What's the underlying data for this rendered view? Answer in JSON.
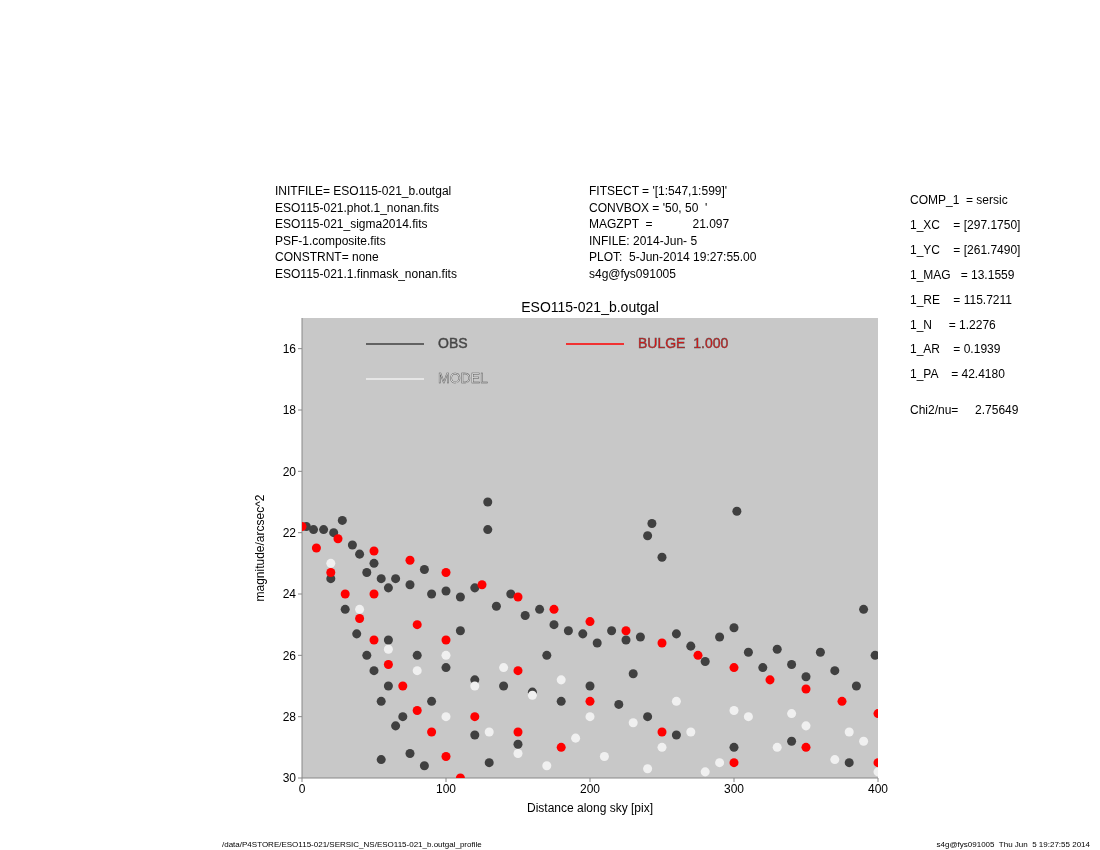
{
  "chart_data": {
    "type": "scatter",
    "title": "ESO115-021_b.outgal",
    "xlabel": "Distance along sky [pix]",
    "ylabel": "magnitude/arcsec^2",
    "xlim": [
      0,
      400
    ],
    "xticks": [
      0,
      100,
      200,
      300,
      400
    ],
    "ylim": [
      30,
      15
    ],
    "yticks": [
      16,
      18,
      20,
      22,
      24,
      26,
      28,
      30
    ],
    "grid": false,
    "legend": "top left",
    "marker": "circle",
    "annotations": [
      "INITFILE= ESO115-021_b.outgal",
      "ESO115-021.phot.1_nonan.fits",
      "ESO115-021_sigma2014.fits",
      "PSF-1.composite.fits",
      "CONSTRNT= none",
      "ESO115-021.1.finmask_nonan.fits",
      "FITSECT = '[1:547,1:599]'",
      "CONVBOX = '50, 50  '",
      "MAGZPT  =            21.097",
      "INFILE: 2014-Jun- 5",
      "PLOT:  5-Jun-2014 19:27:55.00",
      "s4g@fys091005",
      "COMP_1  = sersic",
      "1_XC    = [297.1750]",
      "1_YC    = [261.7490]",
      "1_MAG   = 13.1559",
      "1_RE    = 115.7211",
      "1_N     = 1.2276",
      "1_AR    = 0.1939",
      "1_PA    = 42.4180",
      "Chi2/nu=     2.75649",
      "/data/P4STORE/ESO115-021/SERSIC_NS/ESO115-021_b.outgal_profile",
      "s4g@fys091005  Thu Jun  5 19:27:55 2014"
    ],
    "series": [
      {
        "name": "OBS",
        "color": "#404040",
        "x": [
          3,
          8,
          15,
          22,
          28,
          35,
          40,
          45,
          50,
          55,
          60,
          65,
          75,
          85,
          90,
          100,
          110,
          120,
          129,
          129,
          135,
          145,
          155,
          165,
          175,
          185,
          195,
          205,
          215,
          225,
          235,
          243,
          240,
          250,
          260,
          270,
          280,
          290,
          300,
          302,
          310,
          320,
          330,
          340,
          350,
          360,
          370,
          385,
          390,
          398,
          20,
          30,
          38,
          45,
          50,
          55,
          60,
          65,
          70,
          75,
          85,
          55,
          60,
          80,
          100,
          120,
          140,
          160,
          180,
          200,
          220,
          240,
          150,
          130,
          260,
          300,
          340,
          380,
          110,
          170,
          230,
          90,
          120
        ],
        "values": [
          21.8,
          21.9,
          21.9,
          22.0,
          21.6,
          22.4,
          22.7,
          23.3,
          23.0,
          23.5,
          23.8,
          23.5,
          23.7,
          23.2,
          24.0,
          23.9,
          24.1,
          23.8,
          21.0,
          21.9,
          24.4,
          24.0,
          24.7,
          24.5,
          25.0,
          25.2,
          25.3,
          25.6,
          25.2,
          25.5,
          25.4,
          21.7,
          22.1,
          22.8,
          25.3,
          25.7,
          26.2,
          25.4,
          25.1,
          21.3,
          25.9,
          26.4,
          25.8,
          26.3,
          26.7,
          25.9,
          26.5,
          27.0,
          24.5,
          26.0,
          23.5,
          24.5,
          25.3,
          26.0,
          26.5,
          27.5,
          27.0,
          28.3,
          28.0,
          29.2,
          29.6,
          29.4,
          25.5,
          26.0,
          26.4,
          26.8,
          27.0,
          27.2,
          27.5,
          27.0,
          27.6,
          28.0,
          28.9,
          29.5,
          28.6,
          29.0,
          28.8,
          29.5,
          25.2,
          26.0,
          26.6,
          27.5,
          28.6
        ]
      },
      {
        "name": "MODEL",
        "color": "#f0f0f0",
        "x": [
          100,
          130,
          150,
          170,
          190,
          210,
          230,
          250,
          270,
          290,
          310,
          330,
          350,
          370,
          390,
          400,
          260,
          300,
          340,
          380,
          80,
          120,
          160,
          200,
          240,
          280,
          20,
          40,
          60,
          100,
          140,
          180
        ],
        "values": [
          28.0,
          28.5,
          29.2,
          29.6,
          28.7,
          29.3,
          28.2,
          29.0,
          28.5,
          29.5,
          28.0,
          29.0,
          28.3,
          29.4,
          28.8,
          29.8,
          27.5,
          27.8,
          27.9,
          28.5,
          26.5,
          27.0,
          27.3,
          28.0,
          29.7,
          29.8,
          23.0,
          24.5,
          25.8,
          26.0,
          26.4,
          26.8
        ]
      },
      {
        "name": "BULGE  1.000",
        "color": "#ff0000",
        "x": [
          0,
          25,
          50,
          75,
          100,
          125,
          150,
          175,
          200,
          225,
          250,
          275,
          300,
          325,
          350,
          375,
          400,
          10,
          20,
          30,
          40,
          50,
          60,
          70,
          80,
          90,
          100,
          110,
          50,
          100,
          150,
          200,
          250,
          300,
          120,
          180,
          350,
          400,
          80,
          150
        ],
        "values": [
          21.8,
          22.2,
          22.6,
          22.9,
          23.3,
          23.7,
          24.1,
          24.5,
          24.9,
          25.2,
          25.6,
          26.0,
          26.4,
          26.8,
          27.1,
          27.5,
          27.9,
          22.5,
          23.3,
          24.0,
          24.8,
          25.5,
          26.3,
          27.0,
          27.8,
          28.5,
          29.3,
          30.0,
          24.0,
          25.5,
          26.5,
          27.5,
          28.5,
          29.5,
          28.0,
          29.0,
          29.0,
          29.5,
          25.0,
          28.5
        ]
      }
    ]
  }
}
